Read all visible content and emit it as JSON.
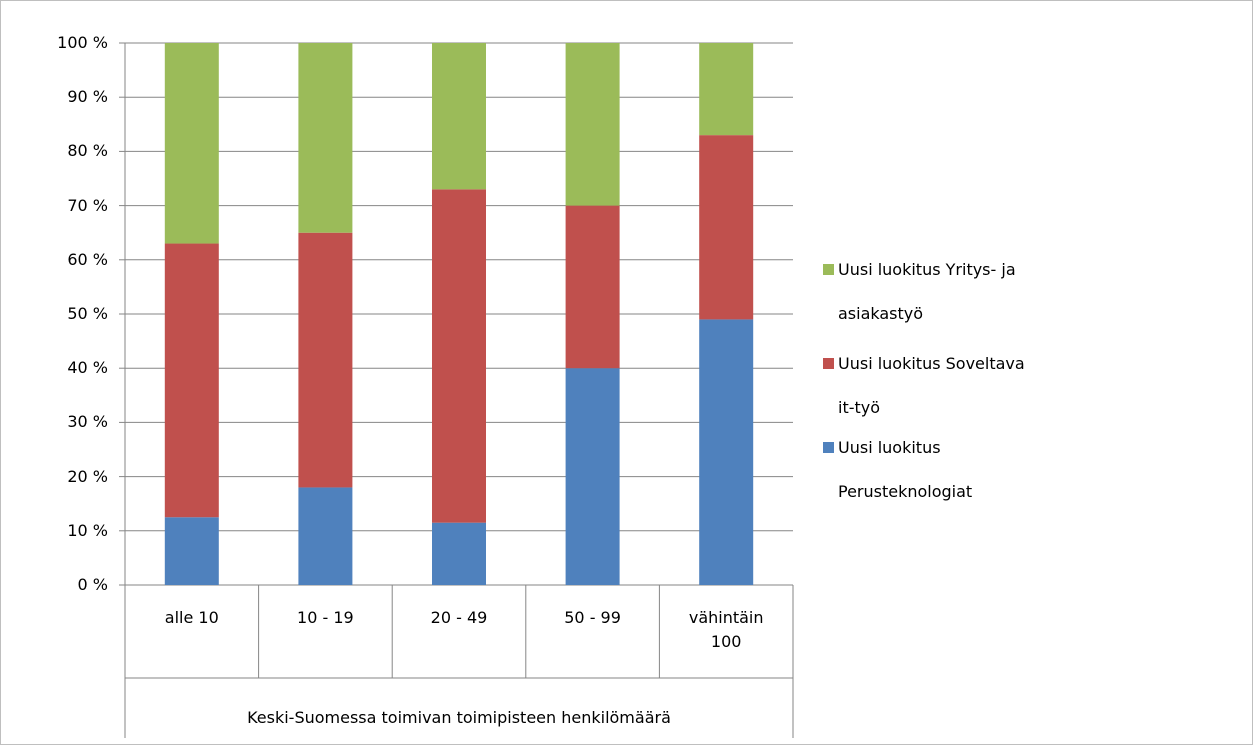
{
  "chart_data": {
    "type": "stacked_bar",
    "x_axis_title": "Keski-Suomessa toimivan toimipisteen henkilömäärä",
    "categories": [
      "alle 10",
      "10 - 19",
      "20 - 49",
      "50 - 99",
      "vähintäin 100"
    ],
    "series": [
      {
        "name": "Uusi luokitus Perusteknologiat",
        "color": "#4f81bd",
        "values": [
          12.5,
          18,
          11.5,
          40,
          49
        ]
      },
      {
        "name": "Uusi luokitus Soveltava it-työ",
        "color": "#c0504d",
        "values": [
          50.5,
          47,
          61.5,
          30,
          34
        ]
      },
      {
        "name": "Uusi luokitus Yritys- ja asiakastyö",
        "color": "#9bbb59",
        "values": [
          37,
          35,
          27,
          30,
          17
        ]
      }
    ],
    "ylim": [
      0,
      100
    ],
    "yticks": [
      {
        "value": 0,
        "label": "0 %"
      },
      {
        "value": 10,
        "label": "10 %"
      },
      {
        "value": 20,
        "label": "20 %"
      },
      {
        "value": 30,
        "label": "30 %"
      },
      {
        "value": 40,
        "label": "40 %"
      },
      {
        "value": 50,
        "label": "50 %"
      },
      {
        "value": 60,
        "label": "60 %"
      },
      {
        "value": 70,
        "label": "70 %"
      },
      {
        "value": 80,
        "label": "80 %"
      },
      {
        "value": 90,
        "label": "90 %"
      },
      {
        "value": 100,
        "label": "100 %"
      }
    ],
    "grid": true,
    "legend": "right"
  }
}
